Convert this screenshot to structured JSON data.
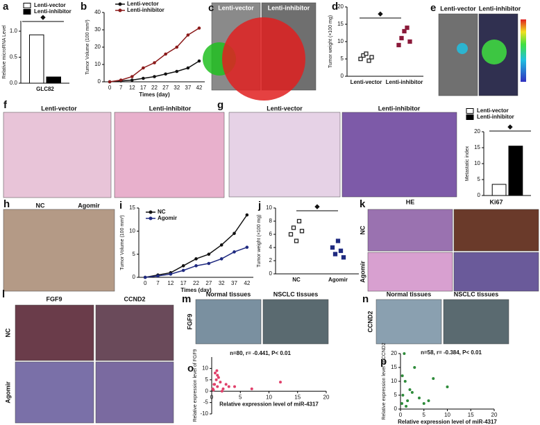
{
  "chart_data": [
    {
      "letter": "a",
      "type": "bar",
      "y_label": "Relative microRNA Level",
      "categories": [
        "GLC82"
      ],
      "series": [
        {
          "name": "Lenti-vector",
          "color": "#ffffff",
          "values": [
            0.93
          ]
        },
        {
          "name": "Lenti-inhibitor",
          "color": "#000000",
          "values": [
            0.12
          ]
        }
      ],
      "ylim": [
        0,
        1.2
      ],
      "yticks": [
        {
          "value": 0,
          "label": "0.0"
        },
        0.5,
        {
          "value": 1,
          "label": "1.0"
        }
      ],
      "annotation": "◆"
    },
    {
      "letter": "b",
      "type": "line",
      "x_label": "Times (day)",
      "y_label": "Tumor Volume (100 mm³)",
      "categories": [
        "0",
        "7",
        "12",
        "17",
        "22",
        "27",
        "32",
        "37",
        "42"
      ],
      "series": [
        {
          "name": "Lenti-vector",
          "color": "#111111",
          "values": [
            0,
            0.5,
            1,
            2,
            3,
            4.5,
            6,
            8,
            12
          ]
        },
        {
          "name": "Lenti-inhibitor",
          "color": "#8b1a1a",
          "values": [
            0,
            1,
            3,
            8,
            11,
            16,
            20,
            27,
            31
          ]
        }
      ],
      "ylim": [
        0,
        40
      ],
      "yticks": [
        0,
        10,
        20,
        30,
        40
      ],
      "annotation": "◆"
    },
    {
      "letter": "d",
      "type": "scatter",
      "y_label": "Tumor weight (×100 mg)",
      "categories": [
        "Lenti-vector",
        "Lenti-inhibitor"
      ],
      "colors": [
        "#222222",
        "#8b1a3a"
      ],
      "values": [
        [
          5,
          6,
          6.5,
          4.5,
          5.5
        ],
        [
          9,
          11,
          13,
          14,
          10
        ]
      ],
      "ylim": [
        0,
        20
      ],
      "yticks": [
        0,
        5,
        10,
        15,
        20
      ],
      "annotation": "◆"
    },
    {
      "type": "bar",
      "y_label": "Metastatic index",
      "categories": [
        null
      ],
      "series": [
        {
          "name": "Lenti-vector",
          "color": "#ffffff",
          "values": [
            3.5
          ]
        },
        {
          "name": "Lenti-inhibitor",
          "color": "#000000",
          "values": [
            15.5
          ]
        }
      ],
      "ylim": [
        0,
        20
      ],
      "yticks": [
        0,
        5,
        10,
        15,
        20
      ],
      "annotation": "◆"
    },
    {
      "letter": "i",
      "type": "line",
      "x_label": "Times (day)",
      "y_label": "Tumor Volume (100 mm³)",
      "categories": [
        "0",
        "7",
        "12",
        "17",
        "22",
        "27",
        "32",
        "37",
        "42"
      ],
      "series": [
        {
          "name": "NC",
          "color": "#111111",
          "values": [
            0,
            0.5,
            1,
            2.5,
            4,
            5,
            7,
            9.5,
            13.5
          ]
        },
        {
          "name": "Agomir",
          "color": "#1f2a80",
          "values": [
            0,
            0.3,
            0.7,
            1.5,
            2.5,
            3,
            4,
            5.5,
            6.5
          ]
        }
      ],
      "ylim": [
        0,
        15
      ],
      "yticks": [
        0,
        5,
        10,
        15
      ],
      "annotation": "◆"
    },
    {
      "letter": "j",
      "type": "scatter",
      "y_label": "Tumor weight (×100 mg)",
      "categories": [
        "NC",
        "Agomir"
      ],
      "colors": [
        "#222222",
        "#1f2a80"
      ],
      "values": [
        [
          6,
          7,
          5,
          8,
          6.5
        ],
        [
          4,
          3,
          5,
          3.5,
          2.5
        ]
      ],
      "ylim": [
        0,
        10
      ],
      "yticks": [
        0,
        2,
        4,
        6,
        8,
        10
      ],
      "annotation": "◆"
    },
    {
      "letter": "o",
      "type": "scatter",
      "x_label": "Relative expression level of miR-4317",
      "y_label": "Relative expression level of FGF9",
      "color": "#e0406a",
      "x": [
        0.2,
        0.5,
        0.8,
        1,
        1.2,
        1.5,
        2,
        2.5,
        3,
        0.3,
        0.6,
        1,
        4,
        7,
        12,
        0.4,
        0.9,
        1.8
      ],
      "values": [
        1,
        3,
        5,
        2,
        6,
        4,
        1,
        3,
        2,
        0.5,
        8,
        7,
        2,
        1,
        4,
        3,
        9,
        0
      ],
      "xlim": [
        0,
        20
      ],
      "xticks": [
        0,
        5,
        10,
        15,
        20
      ],
      "ylim": [
        -10,
        15
      ],
      "yticks": [
        -10,
        -5,
        0,
        5,
        10
      ],
      "annotation": "n=80, r= -0.441, P< 0.01"
    },
    {
      "letter": "p",
      "type": "scatter",
      "x_label": "Relative expression level of miR-4317",
      "y_label": "Relative expression level of CCND2",
      "color": "#2e8b3a",
      "x": [
        0.3,
        0.5,
        1,
        1.5,
        2,
        3,
        4,
        5,
        7,
        10,
        0.8,
        1.2,
        2.5,
        0.4,
        6
      ],
      "values": [
        2,
        5,
        10,
        3,
        7,
        15,
        4,
        2,
        11,
        8,
        20,
        1,
        6,
        12,
        3
      ],
      "xlim": [
        0,
        20
      ],
      "xticks": [
        0,
        5,
        10,
        15,
        20
      ],
      "ylim": [
        0,
        20
      ],
      "yticks": [
        0,
        5,
        10,
        15,
        20
      ],
      "annotation": "n=58, r= -0.384, P< 0.01"
    }
  ],
  "panels": [
    {
      "letter": "c",
      "labels": [
        "Lenti-vector",
        "Lenti-inhibitor"
      ]
    },
    {
      "letter": "e",
      "labels": [
        "Lenti-vector",
        "Lenti-inhibitor"
      ]
    },
    {
      "letter": "f",
      "labels": [
        "Lenti-vector",
        "Lenti-inhibitor"
      ]
    },
    {
      "letter": "g",
      "labels": [
        "Lenti-vector",
        "Lenti-inhibitor"
      ]
    },
    {
      "letter": "h",
      "labels": [
        "NC",
        "Agomir"
      ]
    },
    {
      "letter": "k",
      "labels": [
        "HE",
        "Ki67",
        "NC",
        "Agomir"
      ]
    },
    {
      "letter": "l",
      "labels": [
        "FGF9",
        "CCND2",
        "NC",
        "Agomir"
      ]
    },
    {
      "letter": "m",
      "labels": [
        "Normal tissues",
        "NSCLC tissues",
        "FGF9"
      ]
    },
    {
      "letter": "n",
      "labels": [
        "Normal tissues",
        "NSCLC tissues",
        "CCND2"
      ]
    }
  ]
}
